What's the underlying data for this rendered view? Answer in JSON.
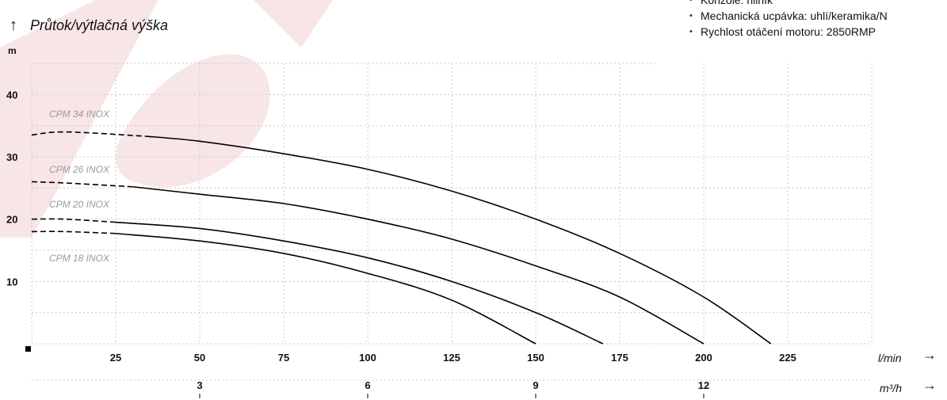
{
  "header": {
    "title": "Průtok/výtlačná výška",
    "y_unit": "m"
  },
  "specs": [
    "Konzole: hliník",
    "Mechanická ucpávka: uhlí/keramika/N",
    "Rychlost otáčení motoru: 2850RMP"
  ],
  "axes": {
    "x_primary_unit": "l/min",
    "x_secondary_unit": "m³/h",
    "y_ticks": [
      "10",
      "20",
      "30",
      "40"
    ],
    "x_ticks": [
      "25",
      "50",
      "75",
      "100",
      "125",
      "150",
      "175",
      "200",
      "225"
    ],
    "x2_ticks": [
      "3",
      "6",
      "9",
      "12"
    ]
  },
  "colors": {
    "curve": "#000000",
    "grid": "#c8c8c8",
    "series_label": "#9a9a9a",
    "watermark": "#f3d2d2"
  },
  "chart_data": {
    "type": "line",
    "title": "Průtok/výtlačná výška",
    "xlabel": "l/min",
    "ylabel": "m",
    "xlim": [
      0,
      250
    ],
    "ylim": [
      0,
      45
    ],
    "grid": true,
    "series": [
      {
        "name": "CPM 34 INOX",
        "x": [
          0,
          10,
          34,
          50,
          75,
          100,
          125,
          150,
          175,
          200,
          220
        ],
        "y": [
          33.5,
          34,
          33.3,
          32.5,
          30.5,
          28,
          24.5,
          20,
          14.5,
          7.5,
          0
        ]
      },
      {
        "name": "CPM 26 INOX",
        "x": [
          0,
          10,
          30,
          50,
          75,
          100,
          125,
          150,
          175,
          200
        ],
        "y": [
          26,
          25.8,
          25.2,
          24,
          22.5,
          20,
          16.8,
          12.5,
          7.5,
          0
        ]
      },
      {
        "name": "CPM 20 INOX",
        "x": [
          0,
          10,
          25,
          50,
          75,
          100,
          125,
          150,
          170
        ],
        "y": [
          20,
          20,
          19.5,
          18.5,
          16.5,
          13.8,
          10,
          5,
          0
        ]
      },
      {
        "name": "CPM 18 INOX",
        "x": [
          0,
          10,
          25,
          50,
          75,
          100,
          125,
          150
        ],
        "y": [
          18,
          18,
          17.7,
          16.5,
          14.5,
          11.3,
          7,
          0
        ]
      }
    ]
  }
}
